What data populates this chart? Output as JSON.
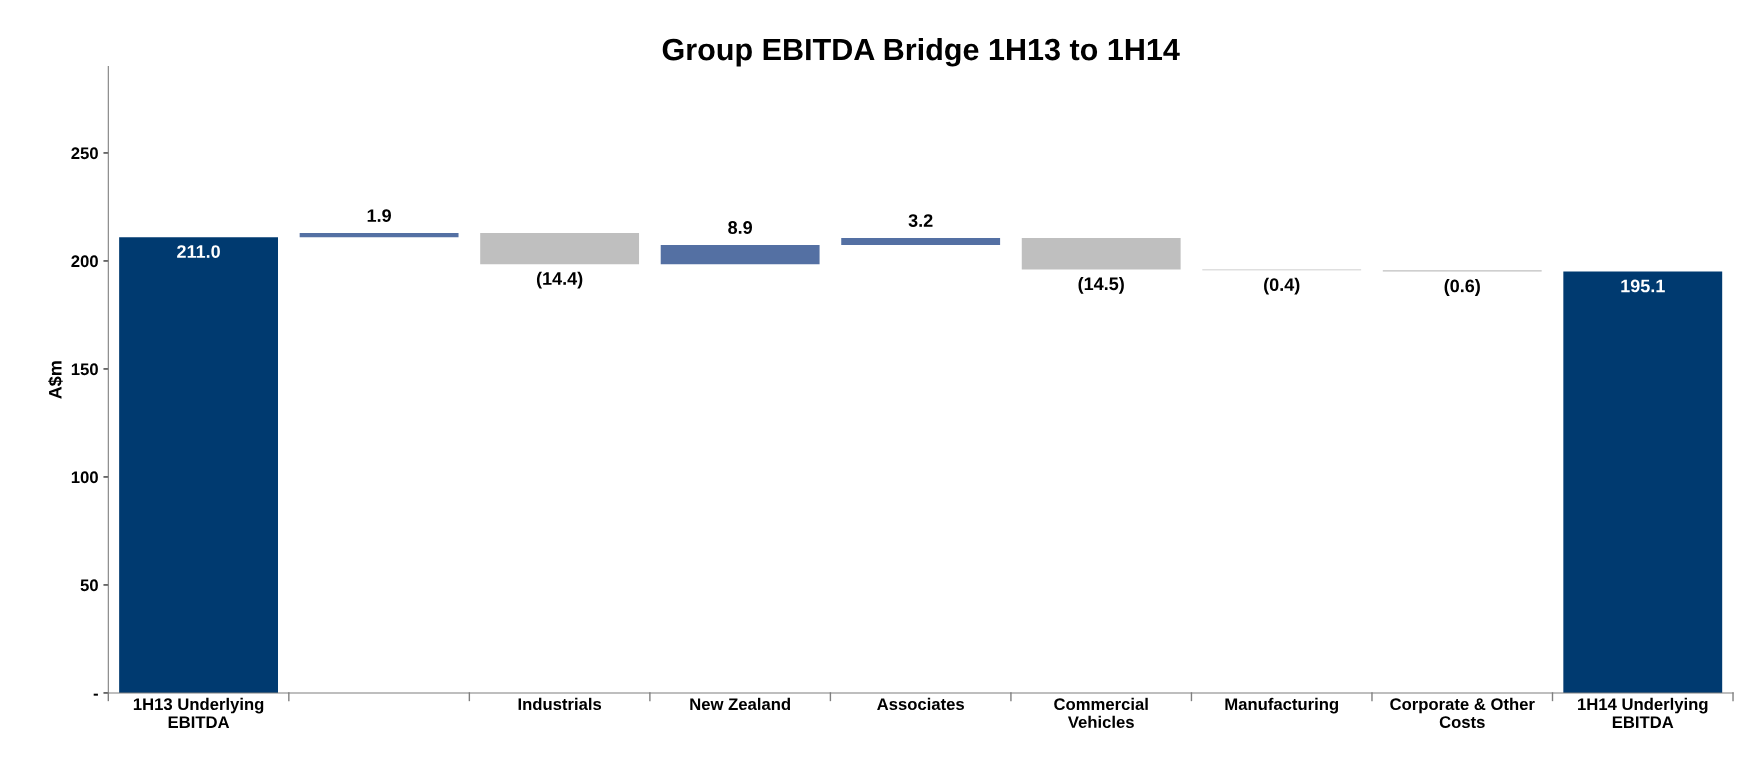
{
  "chart_data": {
    "type": "bar",
    "title": "Group EBITDA Bridge 1H13 to 1H14",
    "ylabel": "A$m",
    "categories": [
      "1H13 Underlying\nEBITDA",
      null,
      "Industrials",
      "New Zealand",
      "Associates",
      "Commercial\nVehicles",
      "Manufacturing",
      "Corporate & Other\nCosts",
      "1H14 Underlying\nEBITDA"
    ],
    "values": [
      211.0,
      1.9,
      -14.4,
      8.9,
      3.2,
      -14.5,
      -0.4,
      -0.6,
      195.1
    ],
    "base": [
      0,
      211.0,
      212.9,
      198.5,
      207.4,
      210.6,
      196.1,
      195.7,
      0
    ],
    "colors": [
      "#003a70",
      "#5470a3",
      "#bfbfbf",
      "#5470a3",
      "#5470a3",
      "#bfbfbf",
      "#bfbfbf",
      "#bfbfbf",
      "#003a70"
    ],
    "value_labels": [
      "211.0",
      "1.9",
      "(14.4)",
      "8.9",
      "3.2",
      "(14.5)",
      "(0.4)",
      "(0.6)",
      "195.1"
    ],
    "ylim": [
      0,
      290
    ],
    "yticks": [
      {
        "value": 0,
        "label": "-"
      },
      50,
      100,
      150,
      200,
      250
    ]
  }
}
